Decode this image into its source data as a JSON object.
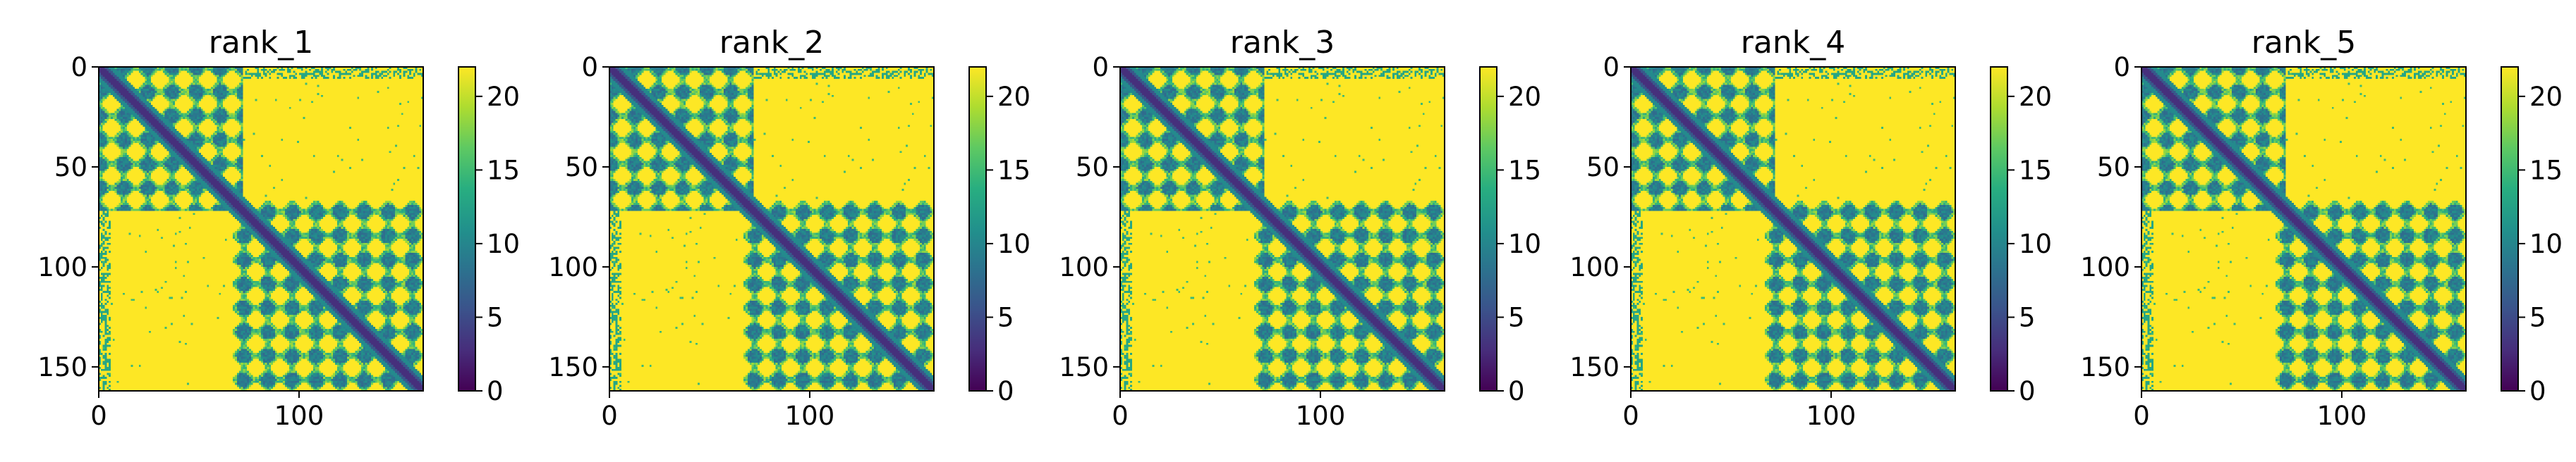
{
  "chart_data": [
    {
      "type": "heatmap",
      "title": "rank_1",
      "xlim": [
        0,
        162
      ],
      "ylim": [
        162,
        0
      ],
      "x_ticks": [
        "0",
        "100"
      ],
      "x_tick_values": [
        0,
        100
      ],
      "y_ticks": [
        "0",
        "50",
        "100",
        "150"
      ],
      "y_tick_values": [
        0,
        50,
        100,
        150
      ],
      "colorbar": {
        "range": [
          0,
          22
        ],
        "ticks": [
          "0",
          "5",
          "10",
          "15",
          "20"
        ],
        "tick_values": [
          0,
          5,
          10,
          15,
          20
        ],
        "colormap": "viridis"
      },
      "grid": false
    },
    {
      "type": "heatmap",
      "title": "rank_2",
      "xlim": [
        0,
        162
      ],
      "ylim": [
        162,
        0
      ],
      "x_ticks": [
        "0",
        "100"
      ],
      "x_tick_values": [
        0,
        100
      ],
      "y_ticks": [
        "0",
        "50",
        "100",
        "150"
      ],
      "y_tick_values": [
        0,
        50,
        100,
        150
      ],
      "colorbar": {
        "range": [
          0,
          22
        ],
        "ticks": [
          "0",
          "5",
          "10",
          "15",
          "20"
        ],
        "tick_values": [
          0,
          5,
          10,
          15,
          20
        ],
        "colormap": "viridis"
      },
      "grid": false
    },
    {
      "type": "heatmap",
      "title": "rank_3",
      "xlim": [
        0,
        162
      ],
      "ylim": [
        162,
        0
      ],
      "x_ticks": [
        "0",
        "100"
      ],
      "x_tick_values": [
        0,
        100
      ],
      "y_ticks": [
        "0",
        "50",
        "100",
        "150"
      ],
      "y_tick_values": [
        0,
        50,
        100,
        150
      ],
      "colorbar": {
        "range": [
          0,
          22
        ],
        "ticks": [
          "0",
          "5",
          "10",
          "15",
          "20"
        ],
        "tick_values": [
          0,
          5,
          10,
          15,
          20
        ],
        "colormap": "viridis"
      },
      "grid": false
    },
    {
      "type": "heatmap",
      "title": "rank_4",
      "xlim": [
        0,
        162
      ],
      "ylim": [
        162,
        0
      ],
      "x_ticks": [
        "0",
        "100"
      ],
      "x_tick_values": [
        0,
        100
      ],
      "y_ticks": [
        "0",
        "50",
        "100",
        "150"
      ],
      "y_tick_values": [
        0,
        50,
        100,
        150
      ],
      "colorbar": {
        "range": [
          0,
          22
        ],
        "ticks": [
          "0",
          "5",
          "10",
          "15",
          "20"
        ],
        "tick_values": [
          0,
          5,
          10,
          15,
          20
        ],
        "colormap": "viridis"
      },
      "grid": false
    },
    {
      "type": "heatmap",
      "title": "rank_5",
      "xlim": [
        0,
        162
      ],
      "ylim": [
        162,
        0
      ],
      "x_ticks": [
        "0",
        "100"
      ],
      "x_tick_values": [
        0,
        100
      ],
      "y_ticks": [
        "0",
        "50",
        "100",
        "150"
      ],
      "y_tick_values": [
        0,
        50,
        100,
        150
      ],
      "colorbar": {
        "range": [
          0,
          22
        ],
        "ticks": [
          "0",
          "5",
          "10",
          "15",
          "20"
        ],
        "tick_values": [
          0,
          5,
          10,
          15,
          20
        ],
        "colormap": "viridis"
      },
      "grid": false
    }
  ]
}
